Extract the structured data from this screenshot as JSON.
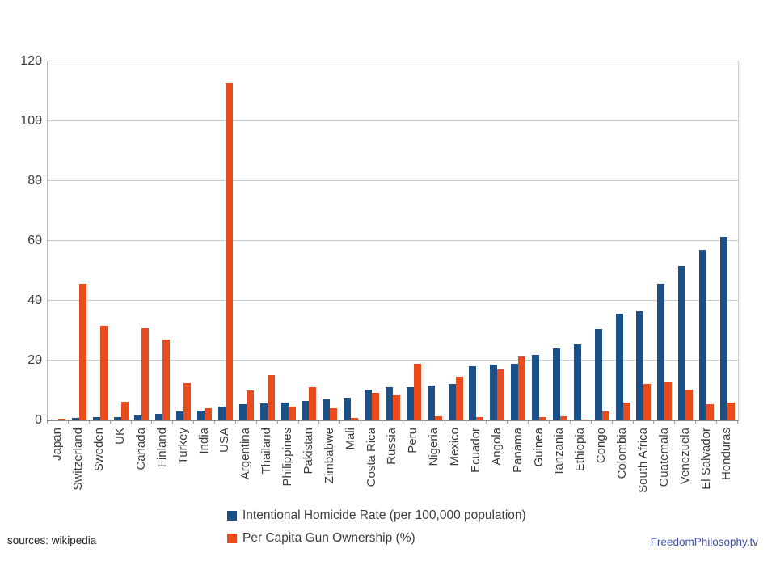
{
  "chart_data": {
    "type": "bar",
    "title": "",
    "xlabel": "",
    "ylabel": "",
    "ylim": [
      0,
      120
    ],
    "yticks": [
      0,
      20,
      40,
      60,
      80,
      100,
      120
    ],
    "grid": true,
    "legend_position": "bottom-center",
    "categories": [
      "Japan",
      "Switzerland",
      "Sweden",
      "UK",
      "Canada",
      "Finland",
      "Turkey",
      "India",
      "USA",
      "Argentina",
      "Thailand",
      "Philippines",
      "Pakistan",
      "Zimbabwe",
      "Mali",
      "Costa Rica",
      "Russia",
      "Peru",
      "Nigeria",
      "Mexico",
      "Ecuador",
      "Angola",
      "Panama",
      "Guinea",
      "Tanzania",
      "Ethiopia",
      "Congo",
      "Colombia",
      "South Africa",
      "Guatemala",
      "Venezuela",
      "El Salvador",
      "Honduras"
    ],
    "series": [
      {
        "name": "Intentional Homicide Rate (per 100,000 population)",
        "color": "#1b4f85",
        "values": [
          0.4,
          0.7,
          1.0,
          1.2,
          1.6,
          2.2,
          2.9,
          3.2,
          4.7,
          5.4,
          5.6,
          6.0,
          6.5,
          7.1,
          7.5,
          10.3,
          11.0,
          11.2,
          11.7,
          12.1,
          18.0,
          18.6,
          18.9,
          22.0,
          24.1,
          25.4,
          30.6,
          35.7,
          36.5,
          45.7,
          51.6,
          57.0,
          61.3
        ]
      },
      {
        "name": "Per Capita Gun Ownership (%)",
        "color": "#e84b1c",
        "values": [
          0.6,
          45.7,
          31.6,
          6.2,
          30.8,
          27.0,
          12.5,
          4.0,
          112.6,
          10.0,
          15.2,
          4.7,
          11.0,
          4.1,
          0.8,
          9.3,
          8.5,
          18.8,
          1.3,
          14.6,
          1.0,
          17.1,
          21.4,
          1.0,
          1.4,
          0.4,
          3.0,
          5.9,
          12.2,
          12.9,
          10.4,
          5.5,
          5.9
        ]
      }
    ]
  },
  "footer": {
    "sources": "sources: wikipedia",
    "brand": "FreedomPhilosophy.tv"
  },
  "colors": {
    "homicide_bar": "#1b4f85",
    "gun_bar": "#e84b1c",
    "gridline": "#c9c9c9",
    "axis_text": "#3d3d3d",
    "brand_text": "#3f51a0"
  }
}
